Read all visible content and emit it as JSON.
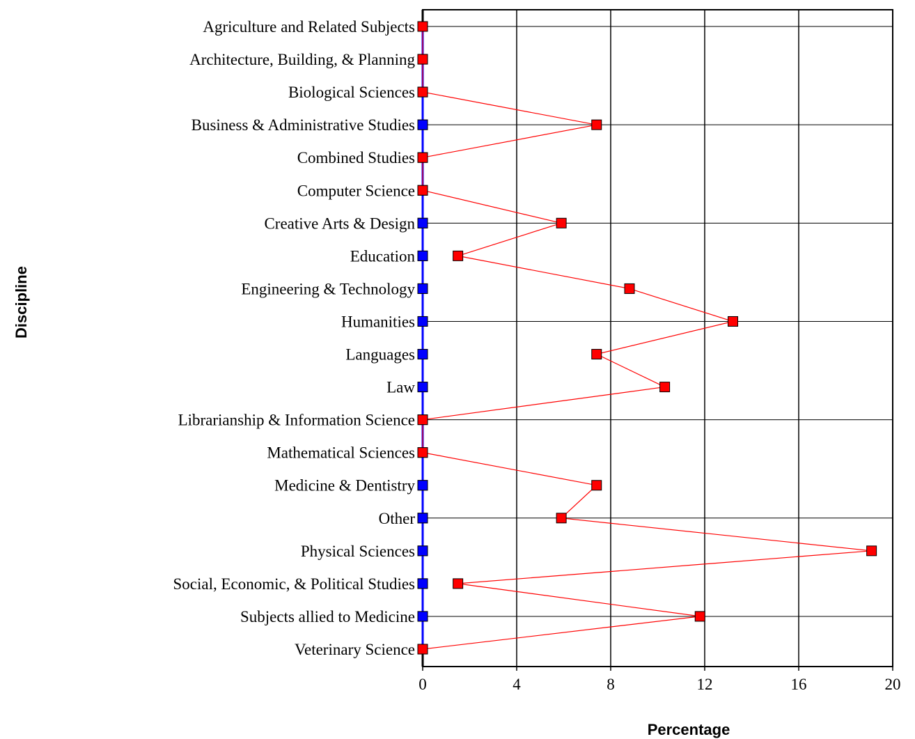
{
  "chart_data": {
    "type": "line",
    "orientation": "horizontal",
    "xlabel": "Percentage",
    "ylabel": "Discipline",
    "xlim": [
      0,
      20
    ],
    "xticks": [
      0,
      4,
      8,
      12,
      16,
      20
    ],
    "grid": true,
    "categories": [
      "Agriculture and Related Subjects",
      "Architecture, Building, & Planning",
      "Biological Sciences",
      "Business & Administrative Studies",
      "Combined Studies",
      "Computer Science",
      "Creative Arts & Design",
      "Education",
      "Engineering & Technology",
      "Humanities",
      "Languages",
      "Law",
      "Librarianship & Information Science",
      "Mathematical Sciences",
      "Medicine & Dentistry",
      "Other",
      "Physical Sciences",
      "Social, Economic, & Political Studies",
      "Subjects allied to Medicine",
      "Veterinary Science"
    ],
    "series": [
      {
        "color": "#0000ff",
        "values": [
          0,
          0,
          0,
          0,
          0,
          0,
          0,
          0,
          0,
          0,
          0,
          0,
          0,
          0,
          0,
          0,
          0,
          0,
          0,
          0
        ]
      },
      {
        "color": "#ff0000",
        "values": [
          0,
          0,
          0,
          7.4,
          0,
          0,
          5.9,
          1.5,
          8.8,
          13.2,
          7.4,
          10.3,
          0,
          0,
          7.4,
          5.9,
          19.1,
          1.5,
          11.8,
          0
        ]
      }
    ]
  }
}
